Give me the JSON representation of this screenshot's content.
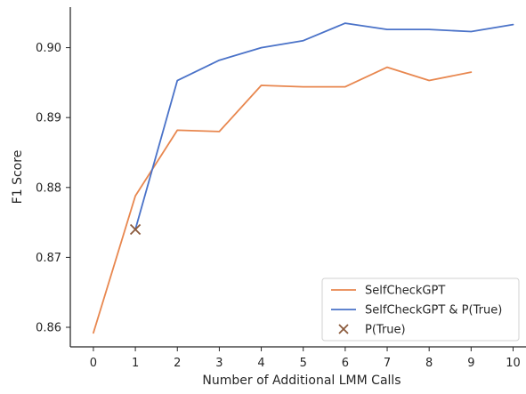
{
  "chart_data": {
    "type": "line",
    "title": "",
    "xlabel": "Number of Additional LMM Calls",
    "ylabel": "F1 Score",
    "x_ticks": [
      "0",
      "1",
      "2",
      "3",
      "4",
      "5",
      "6",
      "7",
      "8",
      "9",
      "10"
    ],
    "y_ticks": [
      "0.86",
      "0.87",
      "0.88",
      "0.89",
      "0.90"
    ],
    "xlim": [
      -0.55,
      10.35
    ],
    "ylim": [
      0.8572,
      0.9058
    ],
    "grid": false,
    "legend_position": "lower-right",
    "series": [
      {
        "name": "SelfCheckGPT",
        "kind": "line",
        "color": "#e8874f",
        "x": [
          0,
          1,
          2,
          3,
          4,
          5,
          6,
          7,
          8,
          9
        ],
        "y": [
          0.8592,
          0.8788,
          0.8882,
          0.888,
          0.8946,
          0.8944,
          0.8944,
          0.8972,
          0.8953,
          0.8965
        ]
      },
      {
        "name": "SelfCheckGPT & P(True)",
        "kind": "line",
        "color": "#4a72c8",
        "x": [
          1,
          2,
          3,
          4,
          5,
          6,
          7,
          8,
          9,
          10
        ],
        "y": [
          0.874,
          0.8953,
          0.8982,
          0.9,
          0.901,
          0.9035,
          0.9026,
          0.9026,
          0.9023,
          0.9033
        ]
      },
      {
        "name": "P(True)",
        "kind": "marker",
        "color": "#8b5a3c",
        "x": [
          1
        ],
        "y": [
          0.874
        ]
      }
    ]
  }
}
